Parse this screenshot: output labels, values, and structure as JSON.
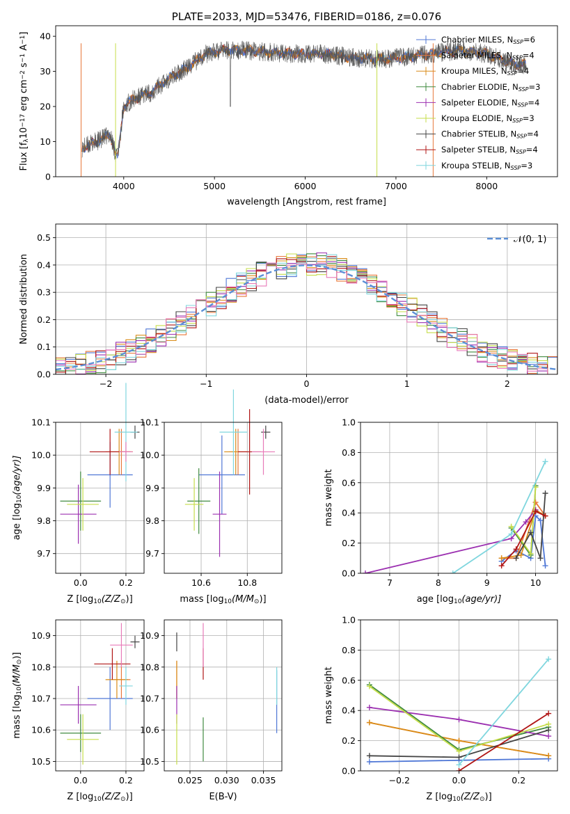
{
  "colors": {
    "chabrier_miles": "#4f77d6",
    "salpeter_miles": "#e8783a",
    "kroupa_miles": "#d98c18",
    "chabrier_elodie": "#3f8a3f",
    "salpeter_elodie": "#9b2fb0",
    "kroupa_elodie": "#c6dd4a",
    "chabrier_stelib": "#444444",
    "salpeter_stelib": "#b01515",
    "kroupa_stelib": "#7fd6de",
    "extra_pink": "#e87ab8",
    "gauss": "#5b8fd6"
  },
  "chart_data": [
    {
      "id": "spectrum",
      "type": "line",
      "title": "PLATE=2033, MJD=53476, FIBERID=0186, z=0.076",
      "xlabel": "wavelength [Angstrom, rest frame]",
      "ylabel_html": "Flux [f",
      "ylabel_parts": [
        "Flux [f",
        "λ",
        "10",
        "−17",
        " erg cm",
        "−2",
        " s",
        "−1",
        " A",
        "−1",
        "]"
      ],
      "xlim": [
        3250,
        8780
      ],
      "ylim": [
        0,
        43
      ],
      "xticks": [
        "4000",
        "5000",
        "6000",
        "7000",
        "8000"
      ],
      "yticks": [
        "0",
        "10",
        "20",
        "30",
        "40"
      ],
      "legend": [
        {
          "name": "Chabrier MILES, N",
          "sub": "SSP",
          "val": "=6"
        },
        {
          "name": "Salpeter MILES, N",
          "sub": "SSP",
          "val": "=4"
        },
        {
          "name": "Kroupa MILES, N",
          "sub": "SSP",
          "val": "=4"
        },
        {
          "name": "Chabrier ELODIE, N",
          "sub": "SSP",
          "val": "=3"
        },
        {
          "name": "Salpeter ELODIE, N",
          "sub": "SSP",
          "val": "=4"
        },
        {
          "name": "Kroupa ELODIE, N",
          "sub": "SSP",
          "val": "=3"
        },
        {
          "name": "Chabrier STELIB, N",
          "sub": "SSP",
          "val": "=4"
        },
        {
          "name": "Salpeter STELIB, N",
          "sub": "SSP",
          "val": "=4"
        },
        {
          "name": "Kroupa STELIB, N",
          "sub": "SSP",
          "val": "=3"
        }
      ],
      "continuum": [
        [
          3520,
          8
        ],
        [
          3700,
          10
        ],
        [
          3850,
          12
        ],
        [
          3930,
          5
        ],
        [
          4000,
          20
        ],
        [
          4100,
          22
        ],
        [
          4300,
          24
        ],
        [
          4500,
          28
        ],
        [
          4700,
          31
        ],
        [
          4900,
          35
        ],
        [
          5100,
          36
        ],
        [
          5300,
          36
        ],
        [
          5600,
          35.5
        ],
        [
          5900,
          35
        ],
        [
          6200,
          35
        ],
        [
          6500,
          34
        ],
        [
          6800,
          33.5
        ],
        [
          7100,
          34
        ],
        [
          7400,
          35
        ],
        [
          7700,
          36
        ],
        [
          8000,
          35
        ],
        [
          8300,
          32
        ],
        [
          8450,
          32
        ]
      ]
    },
    {
      "id": "residuals",
      "type": "histogram",
      "xlabel": "(data-model)/error",
      "ylabel": "Normed distribution",
      "xlim": [
        -2.5,
        2.5
      ],
      "ylim": [
        0,
        0.55
      ],
      "xticks": [
        "−2",
        "−1",
        "0",
        "1",
        "2"
      ],
      "xtick_values": [
        -2,
        -1,
        0,
        1,
        2
      ],
      "yticks": [
        "0.0",
        "0.1",
        "0.2",
        "0.3",
        "0.4",
        "0.5"
      ],
      "legend_label": "𝒩(0, 1)",
      "bin_width": 0.1
    },
    {
      "id": "age_vs_Z",
      "type": "errorbar",
      "xlabel": "Z [log",
      "xlabel_parts": [
        "Z [log",
        "10",
        "(Z/Z",
        "⊙",
        ")]"
      ],
      "ylabel_parts": [
        "age  [log",
        "10",
        "(age/yr)]"
      ],
      "xlim": [
        -0.11,
        0.28
      ],
      "ylim": [
        9.64,
        10.1
      ],
      "xticks": [
        "0.0",
        "0.2"
      ],
      "xtick_values": [
        0,
        0.2
      ],
      "yticks": [
        "9.7",
        "9.8",
        "9.9",
        "10.0",
        "10.1"
      ],
      "ytick_values": [
        9.7,
        9.8,
        9.9,
        10.0,
        10.1
      ],
      "points": [
        {
          "c": "chabrier_miles",
          "x": 0.13,
          "y": 9.94,
          "xe": 0.1,
          "ye": 0.1
        },
        {
          "c": "salpeter_miles",
          "x": 0.18,
          "y": 10.01,
          "xe": 0.05,
          "ye": 0.07
        },
        {
          "c": "kroupa_miles",
          "x": 0.17,
          "y": 10.01,
          "xe": 0.06,
          "ye": 0.07
        },
        {
          "c": "chabrier_elodie",
          "x": 0.0,
          "y": 9.86,
          "xe": 0.09,
          "ye": 0.09
        },
        {
          "c": "salpeter_elodie",
          "x": -0.01,
          "y": 9.82,
          "xe": 0.08,
          "ye": 0.09
        },
        {
          "c": "kroupa_elodie",
          "x": 0.01,
          "y": 9.85,
          "xe": 0.07,
          "ye": 0.08
        },
        {
          "c": "chabrier_stelib",
          "x": 0.24,
          "y": 10.07,
          "xe": 0.02,
          "ye": 0.02
        },
        {
          "c": "salpeter_stelib",
          "x": 0.13,
          "y": 10.01,
          "xe": 0.09,
          "ye": 0.07
        },
        {
          "c": "kroupa_stelib",
          "x": 0.2,
          "y": 10.07,
          "xe": 0.05,
          "ye": 0.15
        },
        {
          "c": "extra_pink",
          "x": 0.2,
          "y": 10.01,
          "xe": 0.03,
          "ye": 0.03
        }
      ]
    },
    {
      "id": "age_vs_mass",
      "type": "errorbar",
      "xlabel_parts": [
        "mass [log",
        "10",
        "(M/M",
        "⊙",
        ")]"
      ],
      "xlim": [
        10.44,
        10.95
      ],
      "ylim": [
        9.64,
        10.1
      ],
      "xticks": [
        "10.6",
        "10.8"
      ],
      "xtick_values": [
        10.6,
        10.8
      ],
      "yticks": [
        "9.7",
        "9.8",
        "9.9",
        "10.0",
        "10.1"
      ],
      "ytick_values": [
        9.7,
        9.8,
        9.9,
        10.0,
        10.1
      ],
      "points": [
        {
          "c": "chabrier_miles",
          "x": 10.69,
          "y": 9.94,
          "xe": 0.1,
          "ye": 0.12
        },
        {
          "c": "salpeter_miles",
          "x": 10.76,
          "y": 10.01,
          "xe": 0.04,
          "ye": 0.07
        },
        {
          "c": "kroupa_miles",
          "x": 10.75,
          "y": 10.01,
          "xe": 0.05,
          "ye": 0.07
        },
        {
          "c": "chabrier_elodie",
          "x": 10.59,
          "y": 9.86,
          "xe": 0.05,
          "ye": 0.1
        },
        {
          "c": "salpeter_elodie",
          "x": 10.68,
          "y": 9.82,
          "xe": 0.03,
          "ye": 0.13
        },
        {
          "c": "kroupa_elodie",
          "x": 10.57,
          "y": 9.85,
          "xe": 0.04,
          "ye": 0.08
        },
        {
          "c": "chabrier_stelib",
          "x": 10.88,
          "y": 10.07,
          "xe": 0.02,
          "ye": 0.02
        },
        {
          "c": "salpeter_stelib",
          "x": 10.81,
          "y": 10.01,
          "xe": 0.05,
          "ye": 0.13
        },
        {
          "c": "kroupa_stelib",
          "x": 10.74,
          "y": 10.07,
          "xe": 0.06,
          "ye": 0.13
        },
        {
          "c": "extra_pink",
          "x": 10.87,
          "y": 10.01,
          "xe": 0.05,
          "ye": 0.07
        }
      ]
    },
    {
      "id": "mass_weight_vs_age",
      "type": "line",
      "xlabel_parts": [
        "age  [log",
        "10",
        "(age/yr)]"
      ],
      "ylabel": "mass weight",
      "xlim": [
        6.4,
        10.45
      ],
      "ylim": [
        0,
        1
      ],
      "xticks": [
        "7",
        "8",
        "9",
        "10"
      ],
      "xtick_values": [
        7,
        8,
        9,
        10
      ],
      "yticks": [
        "0.0",
        "0.2",
        "0.4",
        "0.6",
        "0.8",
        "1.0"
      ],
      "ytick_values": [
        0,
        0.2,
        0.4,
        0.6,
        0.8,
        1.0
      ],
      "series": [
        {
          "c": "chabrier_miles",
          "x": [
            9.3,
            9.6,
            9.9,
            10.0,
            10.1,
            10.2
          ],
          "y": [
            0.08,
            0.15,
            0.1,
            0.38,
            0.35,
            0.05
          ]
        },
        {
          "c": "salpeter_miles",
          "x": [
            9.3,
            9.6,
            10.0,
            10.2
          ],
          "y": [
            0.1,
            0.1,
            0.47,
            0.38
          ]
        },
        {
          "c": "kroupa_miles",
          "x": [
            9.3,
            9.7,
            10.0,
            10.2
          ],
          "y": [
            0.1,
            0.12,
            0.42,
            0.38
          ]
        },
        {
          "c": "chabrier_elodie",
          "x": [
            9.5,
            9.9,
            10.0
          ],
          "y": [
            0.3,
            0.12,
            0.58
          ]
        },
        {
          "c": "salpeter_elodie",
          "x": [
            6.5,
            9.5,
            9.8,
            10.0
          ],
          "y": [
            0.0,
            0.23,
            0.34,
            0.42
          ]
        },
        {
          "c": "kroupa_elodie",
          "x": [
            9.5,
            9.9,
            10.0
          ],
          "y": [
            0.31,
            0.13,
            0.57
          ]
        },
        {
          "c": "chabrier_stelib",
          "x": [
            9.6,
            9.9,
            10.1,
            10.2
          ],
          "y": [
            0.1,
            0.27,
            0.1,
            0.53
          ]
        },
        {
          "c": "salpeter_stelib",
          "x": [
            9.3,
            9.6,
            10.0,
            10.2
          ],
          "y": [
            0.05,
            0.16,
            0.41,
            0.38
          ]
        },
        {
          "c": "kroupa_stelib",
          "x": [
            8.3,
            9.5,
            10.2
          ],
          "y": [
            0.0,
            0.26,
            0.74
          ]
        }
      ]
    },
    {
      "id": "mass_vs_Z",
      "type": "errorbar",
      "xlabel_parts": [
        "Z [log",
        "10",
        "(Z/Z",
        "⊙",
        ")]"
      ],
      "ylabel_parts": [
        "mass [log",
        "10",
        "(M/M",
        "⊙",
        ")]"
      ],
      "xlim": [
        -0.11,
        0.28
      ],
      "ylim": [
        10.47,
        10.95
      ],
      "xticks": [
        "0.0",
        "0.2"
      ],
      "xtick_values": [
        0,
        0.2
      ],
      "yticks": [
        "10.5",
        "10.6",
        "10.7",
        "10.8",
        "10.9"
      ],
      "ytick_values": [
        10.5,
        10.6,
        10.7,
        10.8,
        10.9
      ],
      "points": [
        {
          "c": "chabrier_miles",
          "x": 0.13,
          "y": 10.7,
          "xe": 0.1,
          "ye": 0.1
        },
        {
          "c": "salpeter_miles",
          "x": 0.18,
          "y": 10.76,
          "xe": 0.04,
          "ye": 0.06
        },
        {
          "c": "kroupa_miles",
          "x": 0.16,
          "y": 10.76,
          "xe": 0.05,
          "ye": 0.06
        },
        {
          "c": "chabrier_elodie",
          "x": 0.0,
          "y": 10.59,
          "xe": 0.09,
          "ye": 0.06
        },
        {
          "c": "salpeter_elodie",
          "x": -0.01,
          "y": 10.68,
          "xe": 0.08,
          "ye": 0.06
        },
        {
          "c": "kroupa_elodie",
          "x": 0.01,
          "y": 10.57,
          "xe": 0.07,
          "ye": 0.08
        },
        {
          "c": "chabrier_stelib",
          "x": 0.24,
          "y": 10.88,
          "xe": 0.02,
          "ye": 0.02
        },
        {
          "c": "salpeter_stelib",
          "x": 0.14,
          "y": 10.81,
          "xe": 0.08,
          "ye": 0.05
        },
        {
          "c": "kroupa_stelib",
          "x": 0.2,
          "y": 10.74,
          "xe": 0.03,
          "ye": 0.06
        },
        {
          "c": "extra_pink",
          "x": 0.18,
          "y": 10.87,
          "xe": 0.05,
          "ye": 0.07
        }
      ]
    },
    {
      "id": "mass_vs_ebv",
      "type": "errorbar",
      "xlabel": "E(B-V)",
      "xlim": [
        0.0215,
        0.0375
      ],
      "ylim": [
        10.47,
        10.95
      ],
      "xticks": [
        "0.025",
        "0.030",
        "0.035"
      ],
      "xtick_values": [
        0.025,
        0.03,
        0.035
      ],
      "yticks": [
        "10.5",
        "10.6",
        "10.7",
        "10.8",
        "10.9"
      ],
      "ytick_values": [
        10.5,
        10.6,
        10.7,
        10.8,
        10.9
      ],
      "points": [
        {
          "c": "chabrier_miles",
          "x": 0.0368,
          "y": 10.69,
          "xe": 0,
          "ye": 0.1
        },
        {
          "c": "salpeter_miles",
          "x": 0.0232,
          "y": 10.76,
          "xe": 0,
          "ye": 0.06
        },
        {
          "c": "kroupa_miles",
          "x": 0.0232,
          "y": 10.76,
          "xe": 0,
          "ye": 0.06
        },
        {
          "c": "chabrier_elodie",
          "x": 0.0268,
          "y": 10.57,
          "xe": 0,
          "ye": 0.07
        },
        {
          "c": "salpeter_elodie",
          "x": 0.0232,
          "y": 10.68,
          "xe": 0,
          "ye": 0.06
        },
        {
          "c": "kroupa_elodie",
          "x": 0.0232,
          "y": 10.57,
          "xe": 0,
          "ye": 0.08
        },
        {
          "c": "chabrier_stelib",
          "x": 0.0232,
          "y": 10.88,
          "xe": 0,
          "ye": 0.03
        },
        {
          "c": "salpeter_stelib",
          "x": 0.0268,
          "y": 10.81,
          "xe": 0,
          "ye": 0.05
        },
        {
          "c": "kroupa_stelib",
          "x": 0.0368,
          "y": 10.74,
          "xe": 0,
          "ye": 0.06
        },
        {
          "c": "extra_pink",
          "x": 0.0268,
          "y": 10.87,
          "xe": 0,
          "ye": 0.07
        }
      ]
    },
    {
      "id": "mass_weight_vs_Z",
      "type": "line",
      "xlabel_parts": [
        "Z [log",
        "10",
        "(Z/Z",
        "⊙",
        ")]"
      ],
      "ylabel": "mass weight",
      "xlim": [
        -0.33,
        0.33
      ],
      "ylim": [
        0,
        1
      ],
      "xticks": [
        "−0.2",
        "0.0",
        "0.2"
      ],
      "xtick_values": [
        -0.2,
        0,
        0.2
      ],
      "yticks": [
        "0.0",
        "0.2",
        "0.4",
        "0.6",
        "0.8",
        "1.0"
      ],
      "ytick_values": [
        0,
        0.2,
        0.4,
        0.6,
        0.8,
        1.0
      ],
      "series": [
        {
          "c": "chabrier_miles",
          "x": [
            -0.3,
            0.0,
            0.3
          ],
          "y": [
            0.06,
            0.07,
            0.08
          ]
        },
        {
          "c": "salpeter_miles",
          "x": [
            -0.3,
            0.0,
            0.3
          ],
          "y": [
            0.32,
            0.2,
            0.1
          ]
        },
        {
          "c": "kroupa_miles",
          "x": [
            -0.3,
            0.0,
            0.3
          ],
          "y": [
            0.32,
            0.2,
            0.1
          ]
        },
        {
          "c": "chabrier_elodie",
          "x": [
            -0.3,
            0.0,
            0.3
          ],
          "y": [
            0.57,
            0.14,
            0.29
          ]
        },
        {
          "c": "salpeter_elodie",
          "x": [
            -0.3,
            0.0,
            0.3
          ],
          "y": [
            0.42,
            0.34,
            0.23
          ]
        },
        {
          "c": "kroupa_elodie",
          "x": [
            -0.3,
            0.0,
            0.3
          ],
          "y": [
            0.56,
            0.13,
            0.31
          ]
        },
        {
          "c": "chabrier_stelib",
          "x": [
            -0.3,
            0.0,
            0.3
          ],
          "y": [
            0.1,
            0.09,
            0.27
          ]
        },
        {
          "c": "salpeter_stelib",
          "x": [
            0.0,
            0.3
          ],
          "y": [
            0.0,
            0.38
          ]
        },
        {
          "c": "kroupa_stelib",
          "x": [
            0.0,
            0.3
          ],
          "y": [
            0.04,
            0.74
          ]
        }
      ]
    }
  ]
}
